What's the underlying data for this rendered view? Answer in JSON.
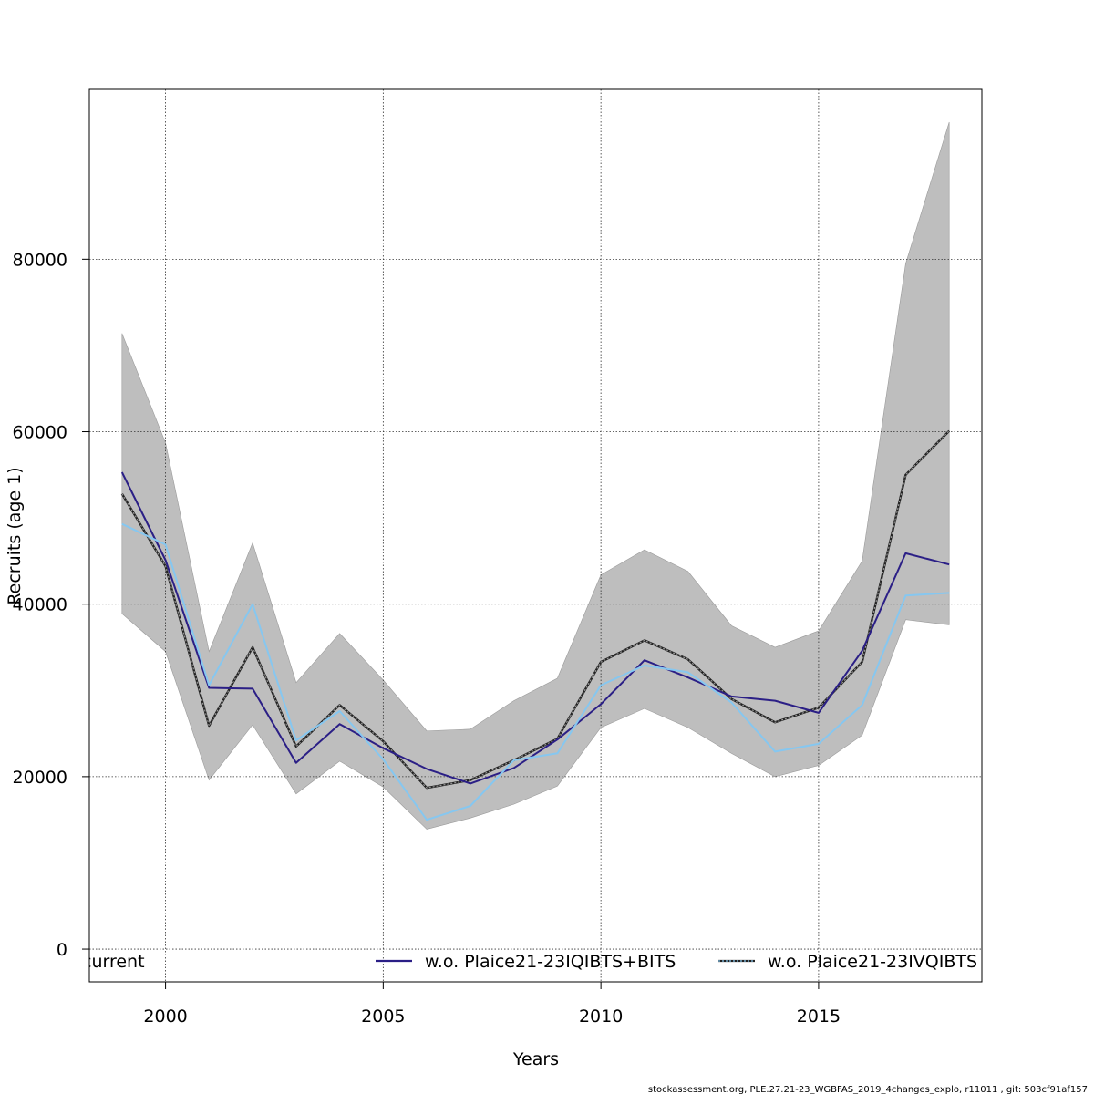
{
  "chart_data": {
    "type": "line",
    "xlabel": "Years",
    "ylabel": "Recruits (age 1)",
    "xlim": [
      1998.25,
      2018.75
    ],
    "ylim": [
      -3800,
      99700
    ],
    "x_ticks": [
      2000,
      2005,
      2010,
      2015
    ],
    "y_ticks": [
      0,
      20000,
      40000,
      60000,
      80000
    ],
    "grid": true,
    "x": [
      1999,
      2000,
      2001,
      2002,
      2003,
      2004,
      2005,
      2006,
      2007,
      2008,
      2009,
      2010,
      2011,
      2012,
      2013,
      2014,
      2015,
      2016,
      2017,
      2018
    ],
    "confidence_band": {
      "upper": [
        71400,
        58700,
        34500,
        47100,
        30900,
        36600,
        31200,
        25300,
        25500,
        28800,
        31400,
        43400,
        46300,
        43800,
        37500,
        35000,
        36900,
        45000,
        79500,
        95900
      ],
      "lower": [
        38900,
        34500,
        19600,
        26000,
        18000,
        21800,
        18800,
        13900,
        15200,
        16800,
        18900,
        25700,
        27900,
        25700,
        22700,
        20000,
        21300,
        24800,
        38200,
        37600
      ],
      "color": "#bebebe"
    },
    "series": [
      {
        "name": "current",
        "style": "dashed",
        "color": "#222222",
        "values": [
          52800,
          44400,
          25900,
          35000,
          23500,
          28300,
          24100,
          18700,
          19600,
          21900,
          24400,
          33300,
          35800,
          33600,
          29000,
          26300,
          28000,
          33300,
          55000,
          60100
        ]
      },
      {
        "name": "w.o. Plaice21-23IQIBTS+BITS",
        "style": "solid",
        "color": "#2b1f86",
        "values": [
          55300,
          45100,
          30300,
          30200,
          21600,
          26100,
          23300,
          20900,
          19200,
          21000,
          24300,
          28400,
          33500,
          31500,
          29300,
          28800,
          27400,
          34600,
          45900,
          44600
        ]
      },
      {
        "name": "w.o. Plaice21-23IVQIBTS",
        "style": "solid",
        "color": "#86c7f0",
        "values": [
          49300,
          46900,
          30600,
          40000,
          24200,
          27600,
          22000,
          15000,
          16600,
          21900,
          22700,
          30600,
          32900,
          32100,
          28600,
          22900,
          23800,
          28300,
          41000,
          41300
        ]
      }
    ],
    "legend": {
      "placement": "bottom",
      "entries": [
        "current",
        "w.o. Plaice21-23IQIBTS+BITS",
        "w.o. Plaice21-23IVQIBTS"
      ]
    }
  },
  "footer": "stockassessment.org, PLE.27.21-23_WGBFAS_2019_4changes_explo, r11011 , git: 503cf91af157"
}
